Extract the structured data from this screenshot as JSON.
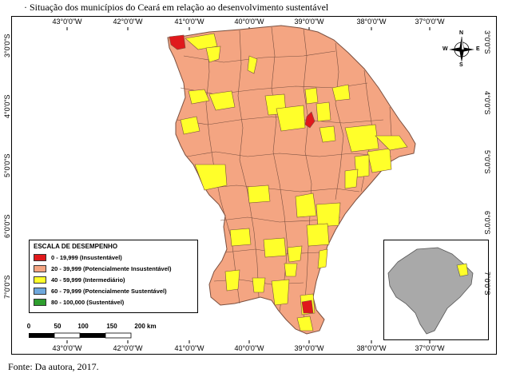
{
  "caption": "· Situação dos municípios do Ceará em relação ao desenvolvimento sustentável",
  "source": "Fonte: Da autora, 2017.",
  "longitude_labels": [
    "43°0'0\"W",
    "42°0'0\"W",
    "41°0'0\"W",
    "40°0'0\"W",
    "39°0'0\"W",
    "38°0'0\"W",
    "37°0'0\"W"
  ],
  "latitude_labels": [
    "3°0'0\"S",
    "4°0'0\"S",
    "5°0'0\"S",
    "6°0'0\"S",
    "7°0'0\"S"
  ],
  "legend": {
    "title": "ESCALA DE DESEMPENHO",
    "items": [
      {
        "label": "0 - 19,999 (Insustentável)",
        "color": "#e0191c"
      },
      {
        "label": "20 - 39,999 (Potencialmente Insustentável)",
        "color": "#f4a582"
      },
      {
        "label": "40 - 59,999 (Intermediário)",
        "color": "#ffff2a"
      },
      {
        "label": "60 - 79,999 (Potencialmente Sustentável)",
        "color": "#6fa8dc"
      },
      {
        "label": "80 - 100,000 (Sustentável)",
        "color": "#2e9e2e"
      }
    ]
  },
  "scale_bar": {
    "labels": [
      "0",
      "50",
      "100",
      "150",
      "200 km"
    ]
  },
  "north_arrow": {
    "n": "N",
    "s": "S",
    "e": "E",
    "w": "W",
    "icon": "compass-rose-icon"
  },
  "inset_map": {
    "icon": "brazil-locator-map"
  },
  "colors": {
    "insustentavel": "#e0191c",
    "potencialmente_insustentavel": "#f4a582",
    "intermediario": "#ffff2a",
    "border": "#7a5040",
    "inset_fill": "#a9a9a9"
  }
}
